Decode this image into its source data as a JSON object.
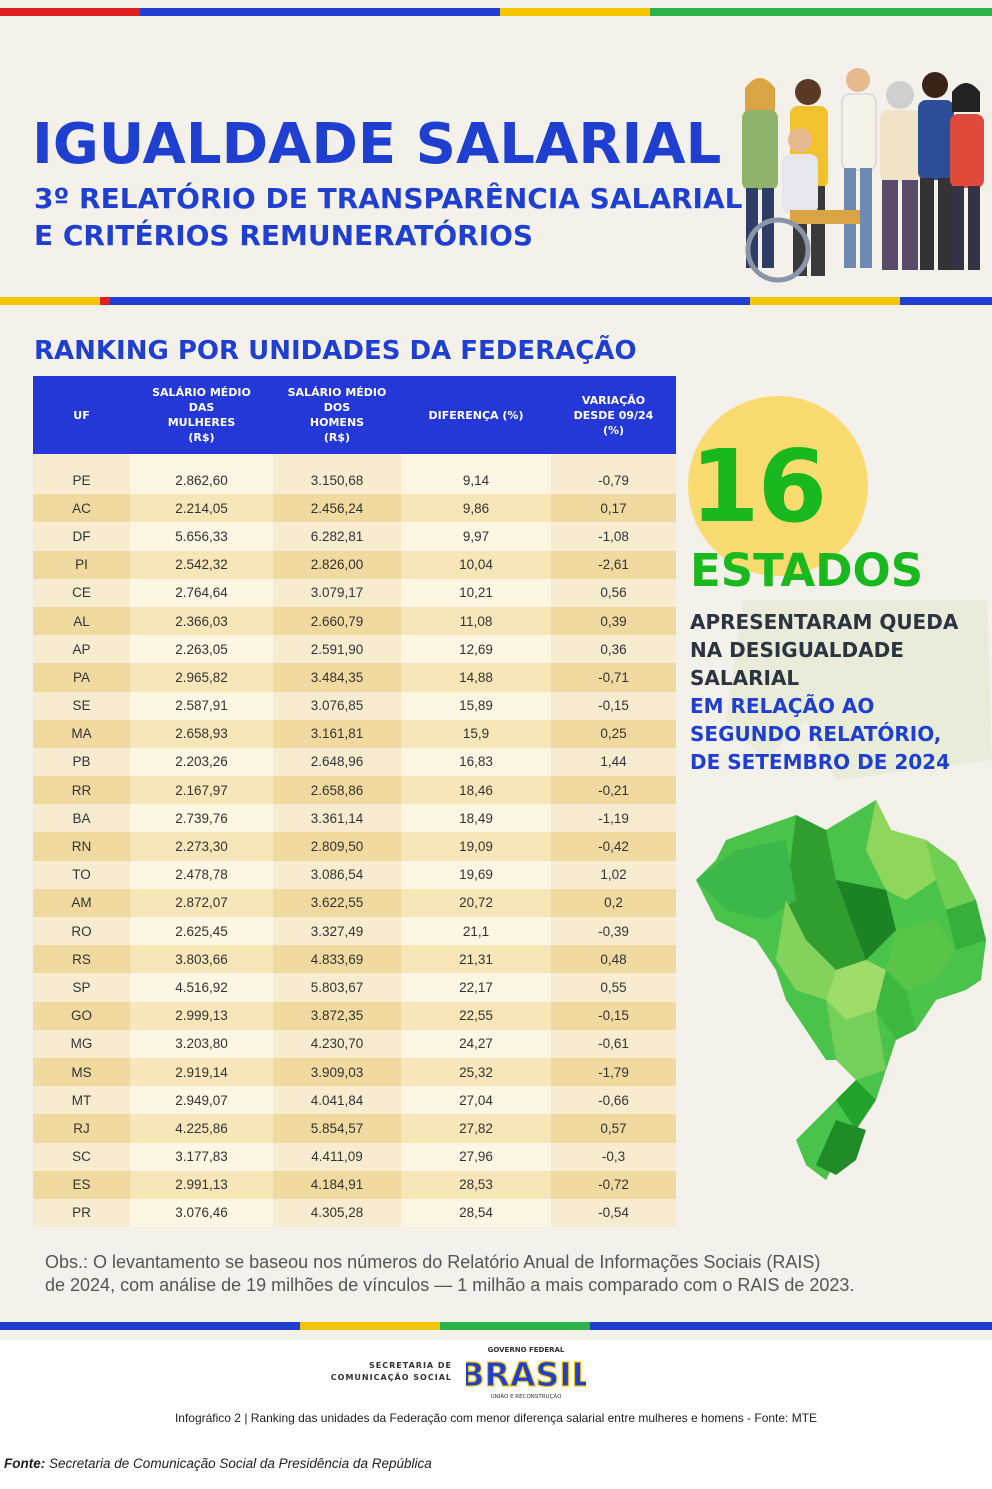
{
  "header": {
    "title": "IGUALDADE SALARIAL",
    "subtitle_line1": "3º RELATÓRIO DE TRANSPARÊNCIA SALARIAL",
    "subtitle_line2": "E CRITÉRIOS REMUNERATÓRIOS"
  },
  "ranking": {
    "heading": "RANKING POR UNIDADES DA FEDERAÇÃO",
    "columns": [
      "UF",
      "SALÁRIO MÉDIO\nDAS\nMULHERES\n(R$)",
      "SALÁRIO MÉDIO\nDOS\nHOMENS\n(R$)",
      "DIFERENÇA (%)",
      "VARIAÇÃO\nDESDE 09/24\n(%)"
    ],
    "rows": [
      [
        "PE",
        "2.862,60",
        "3.150,68",
        "9,14",
        "-0,79"
      ],
      [
        "AC",
        "2.214,05",
        "2.456,24",
        "9,86",
        "0,17"
      ],
      [
        "DF",
        "5.656,33",
        "6.282,81",
        "9,97",
        "-1,08"
      ],
      [
        "PI",
        "2.542,32",
        "2.826,00",
        "10,04",
        "-2,61"
      ],
      [
        "CE",
        "2.764,64",
        "3.079,17",
        "10,21",
        "0,56"
      ],
      [
        "AL",
        "2.366,03",
        "2.660,79",
        "11,08",
        "0,39"
      ],
      [
        "AP",
        "2.263,05",
        "2.591,90",
        "12,69",
        "0,36"
      ],
      [
        "PA",
        "2.965,82",
        "3.484,35",
        "14,88",
        "-0,71"
      ],
      [
        "SE",
        "2.587,91",
        "3.076,85",
        "15,89",
        "-0,15"
      ],
      [
        "MA",
        "2.658,93",
        "3.161,81",
        "15,9",
        "0,25"
      ],
      [
        "PB",
        "2.203,26",
        "2.648,96",
        "16,83",
        "1,44"
      ],
      [
        "RR",
        "2.167,97",
        "2.658,86",
        "18,46",
        "-0,21"
      ],
      [
        "BA",
        "2.739,76",
        "3.361,14",
        "18,49",
        "-1,19"
      ],
      [
        "RN",
        "2.273,30",
        "2.809,50",
        "19,09",
        "-0,42"
      ],
      [
        "TO",
        "2.478,78",
        "3.086,54",
        "19,69",
        "1,02"
      ],
      [
        "AM",
        "2.872,07",
        "3.622,55",
        "20,72",
        "0,2"
      ],
      [
        "RO",
        "2.625,45",
        "3.327,49",
        "21,1",
        "-0,39"
      ],
      [
        "RS",
        "3.803,66",
        "4.833,69",
        "21,31",
        "0,48"
      ],
      [
        "SP",
        "4.516,92",
        "5.803,67",
        "22,17",
        "0,55"
      ],
      [
        "GO",
        "2.999,13",
        "3.872,35",
        "22,55",
        "-0,15"
      ],
      [
        "MG",
        "3.203,80",
        "4.230,70",
        "24,27",
        "-0,61"
      ],
      [
        "MS",
        "2.919,14",
        "3.909,03",
        "25,32",
        "-1,79"
      ],
      [
        "MT",
        "2.949,07",
        "4.041,84",
        "27,04",
        "-0,66"
      ],
      [
        "RJ",
        "4.225,86",
        "5.854,57",
        "27,82",
        "0,57"
      ],
      [
        "SC",
        "3.177,83",
        "4.411,09",
        "27,96",
        "-0,3"
      ],
      [
        "ES",
        "2.991,13",
        "4.184,91",
        "28,53",
        "-0,72"
      ],
      [
        "PR",
        "3.076,46",
        "4.305,28",
        "28,54",
        "-0,54"
      ]
    ]
  },
  "highlight": {
    "number": "16",
    "unit": "ESTADOS",
    "line1": "APRESENTARAM QUEDA",
    "line2": "NA DESIGUALDADE",
    "line3": "SALARIAL",
    "line4": "EM RELAÇÃO AO",
    "line5": "SEGUNDO RELATÓRIO,",
    "line6": "DE SETEMBRO DE 2024"
  },
  "note": {
    "line1": "Obs.: O levantamento se baseou nos números do Relatório Anual de Informações Sociais (RAIS)",
    "line2": "de 2024, com análise de 19 milhões de vínculos — 1 milhão a mais comparado com o RAIS de 2023."
  },
  "logos": {
    "secom_line1": "SECRETARIA DE",
    "secom_line2": "COMUNICAÇÃO SOCIAL",
    "gov_top": "GOVERNO FEDERAL",
    "gov_name": "BRASIL",
    "gov_bottom": "UNIÃO E RECONSTRUÇÃO"
  },
  "caption": "Infográfico 2 | Ranking das unidades da Federação com menor diferença salarial entre mulheres e homens - Fonte: MTE",
  "source": {
    "label": "Fonte:",
    "text": "Secretaria de Comunicação Social da Presidência da República"
  },
  "colors": {
    "brand_blue": "#1f3fd1",
    "table_header": "#2338d6",
    "highlight_green": "#19b81e",
    "stripe": [
      "#e02020",
      "#1f3fd1",
      "#f5c400",
      "#2bb34a"
    ]
  }
}
